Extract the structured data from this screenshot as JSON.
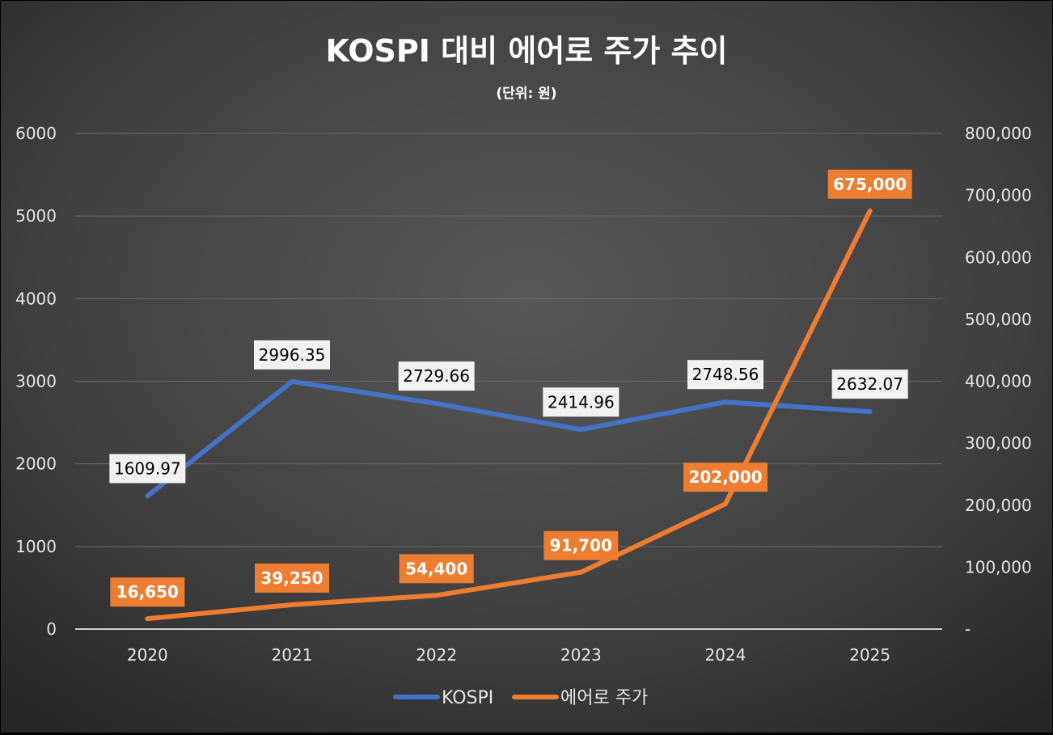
{
  "chart_data": {
    "type": "line",
    "title": "KOSPI 대비 에어로 주가 추이",
    "subtitle": "(단위: 원)",
    "categories": [
      "2020",
      "2021",
      "2022",
      "2023",
      "2024",
      "2025"
    ],
    "series": [
      {
        "name": "KOSPI",
        "axis": "left",
        "color": "#4472c4",
        "values": [
          1609.97,
          2996.35,
          2729.66,
          2414.96,
          2748.56,
          2632.07
        ],
        "labels": [
          "1609.97",
          "2996.35",
          "2729.66",
          "2414.96",
          "2748.56",
          "2632.07"
        ]
      },
      {
        "name": "에어로 주가",
        "axis": "right",
        "color": "#ed7d31",
        "values": [
          16650,
          39250,
          54400,
          91700,
          202000,
          675000
        ],
        "labels": [
          "16,650",
          "39,250",
          "54,400",
          "91,700",
          "202,000",
          "675,000"
        ]
      }
    ],
    "left_axis": {
      "ylim": [
        0,
        6000
      ],
      "ticks": [
        0,
        1000,
        2000,
        3000,
        4000,
        5000,
        6000
      ],
      "tick_labels": [
        "0",
        "1000",
        "2000",
        "3000",
        "4000",
        "5000",
        "6000"
      ]
    },
    "right_axis": {
      "ylim": [
        0,
        800000
      ],
      "ticks": [
        0,
        100000,
        200000,
        300000,
        400000,
        500000,
        600000,
        700000,
        800000
      ],
      "tick_labels": [
        "-",
        "100,000",
        "200,000",
        "300,000",
        "400,000",
        "500,000",
        "600,000",
        "700,000",
        "800,000"
      ]
    },
    "grid": true,
    "legend_position": "bottom",
    "kospi_label_bg": "#f2f2f2",
    "aero_label_bg": "#ed7d31"
  }
}
